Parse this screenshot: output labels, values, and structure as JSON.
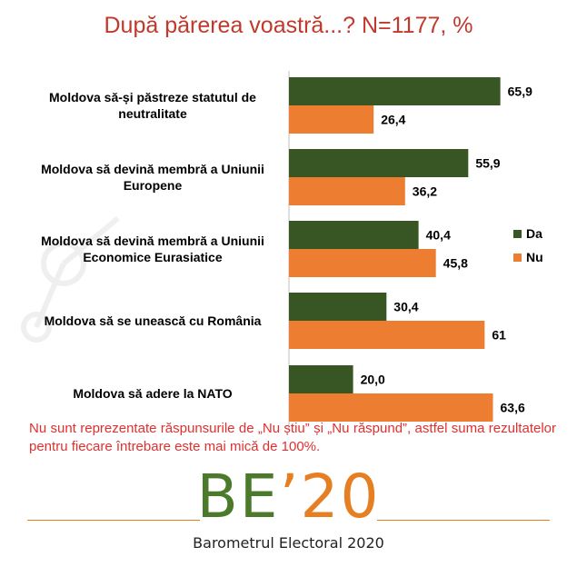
{
  "title": "După părerea voastră...? N=1177, %",
  "chart_data": {
    "type": "bar",
    "orientation": "horizontal",
    "categories": [
      [
        "Moldova să-și păstreze statutul de",
        "neutralitate"
      ],
      [
        "Moldova să devină membră a Uniunii",
        "Europene"
      ],
      [
        "Moldova să devină membră a Uniunii",
        "Economice Eurasiatice"
      ],
      [
        "Moldova să se unească cu România"
      ],
      [
        "Moldova să adere la NATO"
      ]
    ],
    "series": [
      {
        "name": "Da",
        "color": "#375623",
        "values": [
          65.9,
          55.9,
          40.4,
          30.4,
          20.0
        ],
        "labels": [
          "65,9",
          "55,9",
          "40,4",
          "30,4",
          "20,0"
        ]
      },
      {
        "name": "Nu",
        "color": "#ed7d31",
        "values": [
          26.4,
          36.2,
          45.8,
          61,
          63.6
        ],
        "labels": [
          "26,4",
          "36,2",
          "45,8",
          "61",
          "63,6"
        ]
      }
    ],
    "legend_position": "right",
    "xlim": [
      0,
      100
    ],
    "grid": false
  },
  "note": "Nu sunt reprezentate răspunsurile de „Nu știu” și „Nu răspund”, astfel suma rezultatelor pentru fiecare întrebare este mai mică de 100%.",
  "brand": {
    "main": "BE",
    "apos": "’",
    "num": "20",
    "subtitle": "Barometrul Electoral 2020"
  }
}
